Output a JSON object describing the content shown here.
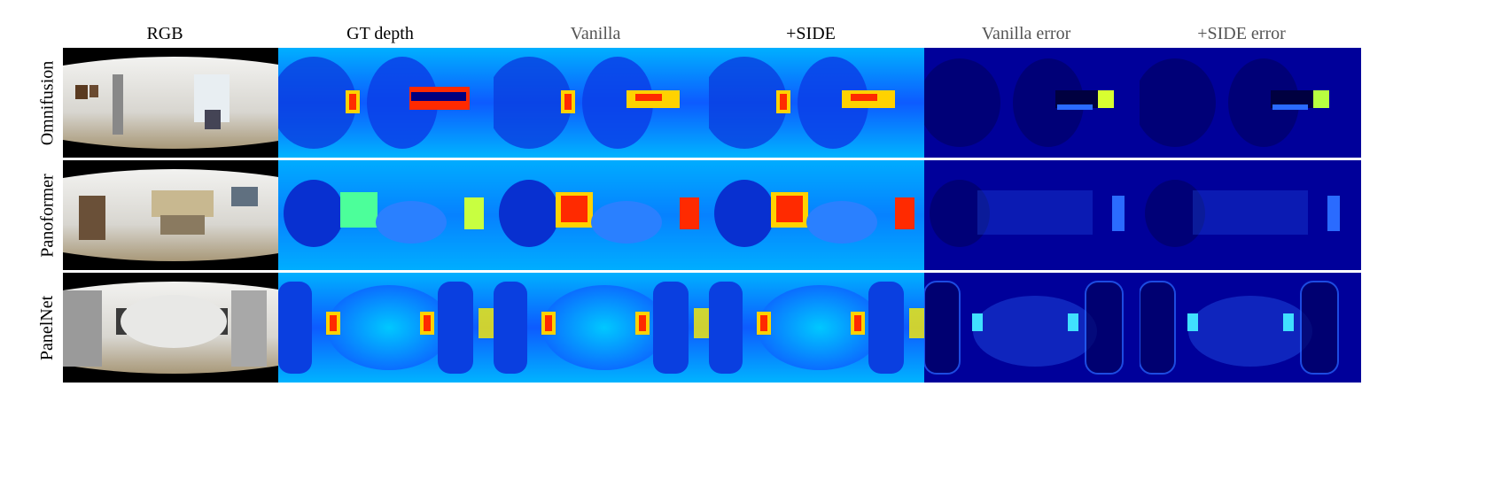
{
  "columns": [
    {
      "label": "RGB",
      "tone": "dark"
    },
    {
      "label": "GT depth",
      "tone": "dark"
    },
    {
      "label": "Vanilla",
      "tone": "gray"
    },
    {
      "label": "+SIDE",
      "tone": "dark"
    },
    {
      "label": "Vanilla error",
      "tone": "gray"
    },
    {
      "label": "+SIDE error",
      "tone": "gray"
    }
  ],
  "rows": [
    {
      "label": "Omnifusion"
    },
    {
      "label": "Panoformer"
    },
    {
      "label": "PanelNet"
    }
  ],
  "colors": {
    "depth_background": "#0d5bff",
    "depth_far": "#00007f",
    "depth_hot": "#ff2a00",
    "depth_warm": "#ffd200",
    "error_background": "#00009a",
    "error_dark": "#000060",
    "error_highlight": "#2a6bff",
    "rgb_frame": "#000000"
  }
}
